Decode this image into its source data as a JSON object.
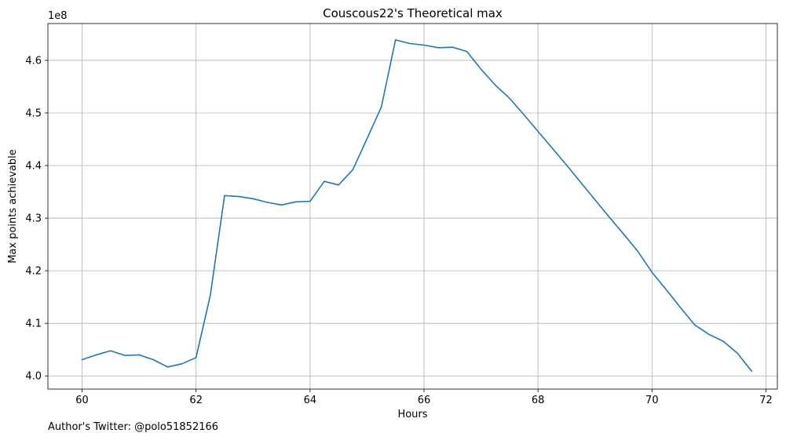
{
  "chart_data": {
    "type": "line",
    "title": "Couscous22's Theoretical max",
    "xlabel": "Hours",
    "ylabel": "Max points achievable",
    "y_offset_label": "1e8",
    "y_multiplier": 100000000,
    "xlim": [
      59.4,
      72.2
    ],
    "ylim": [
      3.975,
      4.67
    ],
    "x_ticks": [
      60,
      62,
      64,
      66,
      68,
      70,
      72
    ],
    "x_tick_labels": [
      "60",
      "62",
      "64",
      "66",
      "68",
      "70",
      "72"
    ],
    "y_ticks": [
      4.0,
      4.1,
      4.2,
      4.3,
      4.4,
      4.5,
      4.6
    ],
    "y_tick_labels": [
      "4.0",
      "4.1",
      "4.2",
      "4.3",
      "4.4",
      "4.5",
      "4.6"
    ],
    "grid": true,
    "line_color": "#1f77b4",
    "series": [
      {
        "x": [
          60.0,
          60.25,
          60.5,
          60.75,
          61.0,
          61.25,
          61.5,
          61.75,
          62.0,
          62.25,
          62.5,
          62.75,
          63.0,
          63.25,
          63.5,
          63.75,
          64.0,
          64.25,
          64.5,
          64.75,
          65.0,
          65.25,
          65.5,
          65.75,
          66.0,
          66.25,
          66.5,
          66.75,
          67.0,
          67.25,
          67.5,
          67.75,
          68.0,
          68.25,
          68.5,
          68.75,
          69.0,
          69.25,
          69.5,
          69.75,
          70.0,
          70.25,
          70.5,
          70.75,
          71.0,
          71.25,
          71.5,
          71.75
        ],
        "y": [
          4.031,
          4.04,
          4.048,
          4.039,
          4.04,
          4.031,
          4.017,
          4.023,
          4.035,
          4.153,
          4.343,
          4.341,
          4.337,
          4.33,
          4.325,
          4.331,
          4.332,
          4.37,
          4.363,
          4.392,
          4.451,
          4.511,
          4.639,
          4.632,
          4.629,
          4.624,
          4.625,
          4.617,
          4.583,
          4.553,
          4.528,
          4.497,
          4.465,
          4.433,
          4.401,
          4.368,
          4.335,
          4.302,
          4.27,
          4.237,
          4.197,
          4.164,
          4.13,
          4.097,
          4.079,
          4.066,
          4.043,
          4.009
        ]
      }
    ]
  },
  "footnote": "Author's Twitter: @polo51852166"
}
